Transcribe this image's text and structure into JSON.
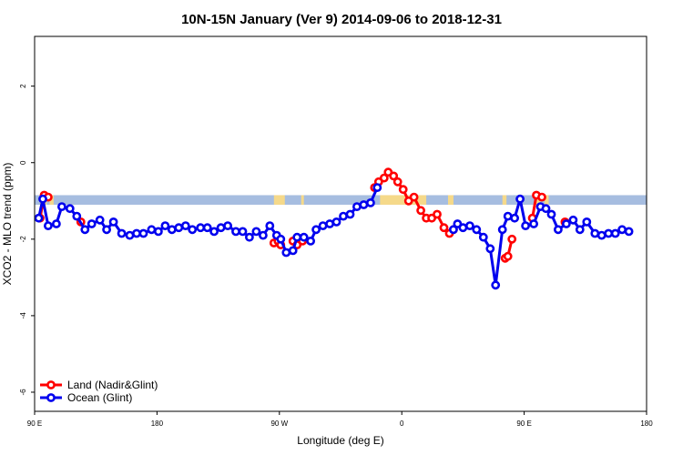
{
  "chart_data": {
    "type": "line",
    "title": "10N-15N January (Ver 9)   2014-09-06 to 2018-12-31",
    "xlabel": "Longitude (deg E)",
    "ylabel": "XCO2 - MLO trend (ppm)",
    "x_ticks": [
      {
        "x": 90,
        "label": "90 E"
      },
      {
        "x": 180,
        "label": "180"
      },
      {
        "x": 270,
        "label": "90 W"
      },
      {
        "x": 360,
        "label": "0"
      },
      {
        "x": 450,
        "label": "90 E"
      },
      {
        "x": 540,
        "label": "180"
      }
    ],
    "y_ticks": [
      {
        "y": 2,
        "label": "2"
      },
      {
        "y": 0,
        "label": "0"
      },
      {
        "y": -2,
        "label": "-2"
      },
      {
        "y": -4,
        "label": "-4"
      },
      {
        "y": -6,
        "label": "-6"
      }
    ],
    "xlim": [
      90,
      540
    ],
    "ylim": [
      -6.5,
      3.3
    ],
    "grid": false,
    "legend_position": "bottom-left",
    "land_band": {
      "y_min": -1.1,
      "y_max": -0.85
    },
    "colors": {
      "land": "#ff0000",
      "ocean": "#0000ee",
      "band_ocean": "#a6bde0",
      "band_land": "#f5d98a"
    },
    "series": [
      {
        "name": "Land (Nadir&Glint)",
        "color": "#ff0000",
        "segments": [
          [
            [
              94,
              -1.45
            ],
            [
              97,
              -0.85
            ],
            [
              100,
              -0.9
            ]
          ],
          [
            [
              124,
              -1.55
            ]
          ],
          [
            [
              266,
              -2.1
            ],
            [
              269,
              -2.05
            ],
            [
              271,
              -2.15
            ]
          ],
          [
            [
              280,
              -2.05
            ],
            [
              283,
              -2.15
            ],
            [
              287,
              -2.05
            ]
          ],
          [
            [
              340,
              -0.65
            ],
            [
              343,
              -0.5
            ],
            [
              347,
              -0.4
            ],
            [
              350,
              -0.25
            ],
            [
              354,
              -0.35
            ],
            [
              357,
              -0.5
            ],
            [
              361,
              -0.7
            ],
            [
              365,
              -1.0
            ],
            [
              369,
              -0.9
            ],
            [
              374,
              -1.25
            ],
            [
              378,
              -1.45
            ],
            [
              382,
              -1.45
            ],
            [
              386,
              -1.35
            ],
            [
              391,
              -1.7
            ],
            [
              395,
              -1.85
            ],
            [
              398,
              -1.75
            ]
          ],
          [
            [
              436,
              -2.5
            ],
            [
              438,
              -2.45
            ],
            [
              441,
              -2.0
            ]
          ],
          [
            [
              456,
              -1.45
            ],
            [
              459,
              -0.85
            ],
            [
              463,
              -0.9
            ]
          ],
          [
            [
              480,
              -1.55
            ]
          ]
        ]
      },
      {
        "name": "Ocean (Glint)",
        "color": "#0000ee",
        "segments": [
          [
            [
              93,
              -1.45
            ],
            [
              96,
              -0.95
            ],
            [
              100,
              -1.65
            ],
            [
              106,
              -1.6
            ],
            [
              110,
              -1.15
            ],
            [
              116,
              -1.2
            ],
            [
              121,
              -1.4
            ],
            [
              127,
              -1.75
            ],
            [
              132,
              -1.6
            ],
            [
              138,
              -1.5
            ],
            [
              143,
              -1.75
            ],
            [
              148,
              -1.55
            ],
            [
              154,
              -1.85
            ],
            [
              160,
              -1.9
            ],
            [
              165,
              -1.85
            ],
            [
              170,
              -1.85
            ],
            [
              176,
              -1.75
            ],
            [
              181,
              -1.8
            ],
            [
              186,
              -1.65
            ],
            [
              191,
              -1.75
            ],
            [
              196,
              -1.7
            ],
            [
              201,
              -1.65
            ],
            [
              206,
              -1.75
            ],
            [
              212,
              -1.7
            ],
            [
              217,
              -1.7
            ],
            [
              222,
              -1.8
            ],
            [
              227,
              -1.7
            ],
            [
              232,
              -1.65
            ],
            [
              238,
              -1.8
            ],
            [
              243,
              -1.8
            ],
            [
              248,
              -1.95
            ],
            [
              253,
              -1.8
            ],
            [
              258,
              -1.9
            ],
            [
              263,
              -1.65
            ],
            [
              268,
              -1.9
            ],
            [
              271,
              -2.0
            ],
            [
              275,
              -2.35
            ],
            [
              280,
              -2.3
            ],
            [
              283,
              -1.95
            ],
            [
              288,
              -1.95
            ],
            [
              293,
              -2.05
            ],
            [
              297,
              -1.75
            ],
            [
              302,
              -1.65
            ],
            [
              307,
              -1.6
            ],
            [
              312,
              -1.55
            ],
            [
              317,
              -1.4
            ],
            [
              322,
              -1.35
            ],
            [
              327,
              -1.15
            ],
            [
              332,
              -1.1
            ],
            [
              337,
              -1.05
            ],
            [
              342,
              -0.65
            ]
          ],
          [
            [
              398,
              -1.75
            ],
            [
              401,
              -1.6
            ],
            [
              405,
              -1.7
            ],
            [
              410,
              -1.65
            ],
            [
              415,
              -1.75
            ],
            [
              420,
              -1.95
            ],
            [
              425,
              -2.25
            ],
            [
              429,
              -3.2
            ],
            [
              434,
              -1.75
            ],
            [
              438,
              -1.4
            ],
            [
              443,
              -1.45
            ],
            [
              447,
              -0.95
            ],
            [
              451,
              -1.65
            ],
            [
              457,
              -1.6
            ],
            [
              462,
              -1.15
            ],
            [
              466,
              -1.2
            ],
            [
              470,
              -1.35
            ],
            [
              475,
              -1.75
            ],
            [
              481,
              -1.6
            ],
            [
              486,
              -1.5
            ],
            [
              491,
              -1.75
            ],
            [
              496,
              -1.55
            ],
            [
              502,
              -1.85
            ],
            [
              507,
              -1.9
            ],
            [
              512,
              -1.85
            ],
            [
              517,
              -1.85
            ],
            [
              522,
              -1.75
            ],
            [
              527,
              -1.8
            ]
          ]
        ]
      }
    ]
  }
}
